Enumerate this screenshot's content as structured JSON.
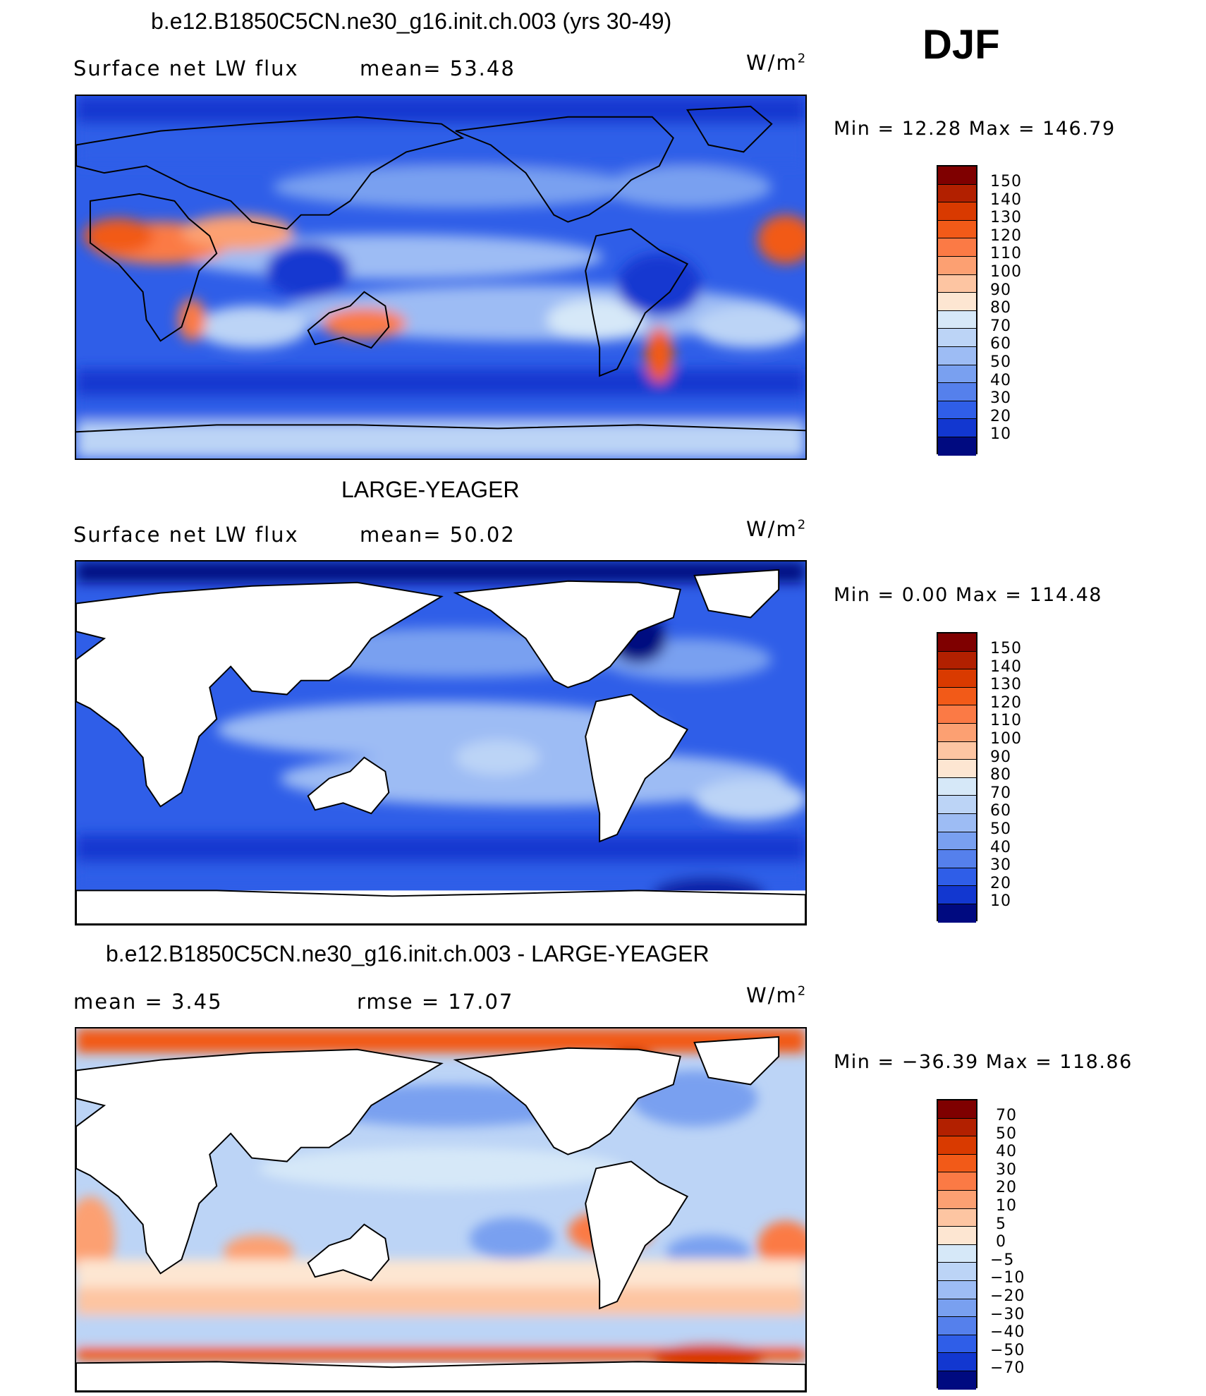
{
  "season": "DJF",
  "panels": [
    {
      "title": "b.e12.B1850C5CN.ne30_g16.init.ch.003 (yrs 30-49)",
      "left_label": "Surface net LW flux",
      "center_label": "mean=  53.48",
      "units": "W/m",
      "units_sup": "2",
      "minmax": "Min =   12.28 Max = 146.79",
      "colorbar_labels": [
        "150",
        "140",
        "130",
        "120",
        "110",
        "100",
        "90",
        "80",
        "70",
        "60",
        "50",
        "40",
        "30",
        "20",
        "10"
      ],
      "colorbar_colors": [
        "#7f0000",
        "#b22000",
        "#d93a00",
        "#f25a18",
        "#fb7a45",
        "#fca072",
        "#fdc5a2",
        "#fde6d2",
        "#d6e8f8",
        "#bcd4f6",
        "#9dbcf4",
        "#79a0f0",
        "#5580ec",
        "#2f5ee8",
        "#1237d0",
        "#0a20a8",
        "#000a80"
      ]
    },
    {
      "title": "LARGE-YEAGER",
      "left_label": "Surface net LW flux",
      "center_label": "mean=  50.02",
      "units": "W/m",
      "units_sup": "2",
      "minmax": "Min =    0.00 Max = 114.48",
      "colorbar_labels": [
        "150",
        "140",
        "130",
        "120",
        "110",
        "100",
        "90",
        "80",
        "70",
        "60",
        "50",
        "40",
        "30",
        "20",
        "10"
      ],
      "colorbar_colors": [
        "#7f0000",
        "#b22000",
        "#d93a00",
        "#f25a18",
        "#fb7a45",
        "#fca072",
        "#fdc5a2",
        "#fde6d2",
        "#d6e8f8",
        "#bcd4f6",
        "#9dbcf4",
        "#79a0f0",
        "#5580ec",
        "#2f5ee8",
        "#1237d0",
        "#0a20a8",
        "#000a80"
      ]
    },
    {
      "title": "b.e12.B1850C5CN.ne30_g16.init.ch.003 - LARGE-YEAGER",
      "left_label": "mean =    3.45",
      "center_label": "rmse =   17.07",
      "units": "W/m",
      "units_sup": "2",
      "minmax": "Min = −36.39 Max = 118.86",
      "colorbar_labels": [
        "70",
        "50",
        "40",
        "30",
        "20",
        "10",
        "5",
        "0",
        "−5",
        "−10",
        "−20",
        "−30",
        "−40",
        "−50",
        "−70"
      ],
      "colorbar_colors": [
        "#7f0000",
        "#b22000",
        "#d93a00",
        "#f25a18",
        "#fb7a45",
        "#fca072",
        "#fdc5a2",
        "#fde6d2",
        "#d6e8f8",
        "#bcd4f6",
        "#9dbcf4",
        "#79a0f0",
        "#5580ec",
        "#2f5ee8",
        "#1237d0",
        "#0a20a8",
        "#000a80"
      ]
    }
  ]
}
